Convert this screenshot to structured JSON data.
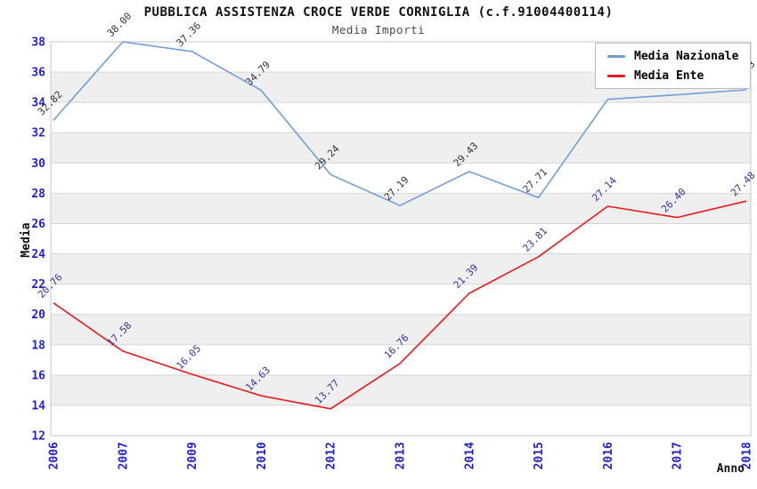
{
  "header": {
    "title": "PUBBLICA ASSISTENZA CROCE VERDE CORNIGLIA (c.f.91004400114)",
    "subtitle": "Media Importi"
  },
  "legend": {
    "items": [
      {
        "label": "Media Nazionale",
        "color": "#6f9fd8"
      },
      {
        "label": "Media Ente",
        "color": "#e81b1b"
      }
    ]
  },
  "chart_data": {
    "type": "line",
    "title": "PUBBLICA ASSISTENZA CROCE VERDE CORNIGLIA (c.f.91004400114)",
    "subtitle": "Media Importi",
    "xlabel": "Anno",
    "ylabel": "Media",
    "x": [
      "2006",
      "2007",
      "2009",
      "2010",
      "2012",
      "2013",
      "2014",
      "2015",
      "2016",
      "2017",
      "2018"
    ],
    "series": [
      {
        "name": "Media Nazionale",
        "color": "#6f9fd8",
        "label_color": "#333333",
        "values": [
          32.82,
          38.0,
          37.36,
          34.79,
          29.24,
          27.19,
          29.43,
          27.71,
          34.2,
          34.5,
          34.83
        ],
        "point_labels": [
          "32.82",
          "38.00",
          "37.36",
          "34.79",
          "29.24",
          "27.19",
          "29.43",
          "27.71",
          "",
          "",
          "34.83"
        ]
      },
      {
        "name": "Media Ente",
        "color": "#e81b1b",
        "label_color": "#3333a2",
        "values": [
          20.76,
          17.58,
          16.05,
          14.63,
          13.77,
          16.76,
          21.39,
          23.81,
          27.14,
          26.4,
          27.48
        ],
        "point_labels": [
          "20.76",
          "17.58",
          "16.05",
          "14.63",
          "13.77",
          "16.76",
          "21.39",
          "23.81",
          "27.14",
          "26.40",
          "27.48"
        ]
      }
    ],
    "ylim": [
      12,
      38
    ],
    "ytick_step": 2,
    "grid": true,
    "legend_position": "top-right",
    "colors": {
      "tick_label": "#2222cc",
      "axis_title": "#111111",
      "band": "#efefef",
      "gridline": "#d6d6d6",
      "border": "#c9c9c9"
    }
  }
}
